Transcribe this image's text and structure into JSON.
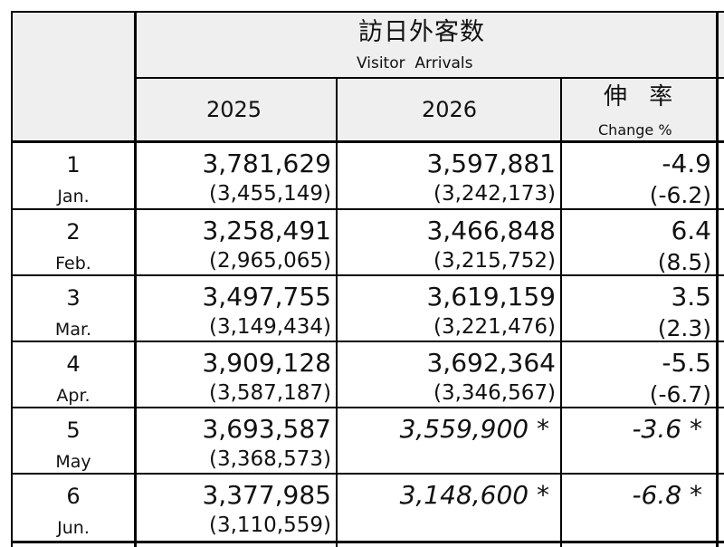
{
  "header": {
    "title_jp": "訪日外客数",
    "title_en": "Visitor  Arrivals",
    "col_2025": "2025",
    "col_2026": "2026",
    "change_jp": "伸 率",
    "change_en": "Change %"
  },
  "rows": [
    {
      "num": "1",
      "month": "Jan.",
      "v2025": "3,781,629",
      "p2025": "(3,455,149)",
      "v2026": "3,597,881",
      "p2026": "(3,242,173)",
      "chg": "-4.9",
      "pchg": "(-6.2)",
      "est": false
    },
    {
      "num": "2",
      "month": "Feb.",
      "v2025": "3,258,491",
      "p2025": "(2,965,065)",
      "v2026": "3,466,848",
      "p2026": "(3,215,752)",
      "chg": "6.4",
      "pchg": "(8.5)",
      "est": false
    },
    {
      "num": "3",
      "month": "Mar.",
      "v2025": "3,497,755",
      "p2025": "(3,149,434)",
      "v2026": "3,619,159",
      "p2026": "(3,221,476)",
      "chg": "3.5",
      "pchg": "(2.3)",
      "est": false
    },
    {
      "num": "4",
      "month": "Apr.",
      "v2025": "3,909,128",
      "p2025": "(3,587,187)",
      "v2026": "3,692,364",
      "p2026": "(3,346,567)",
      "chg": "-5.5",
      "pchg": "(-6.7)",
      "est": false
    },
    {
      "num": "5",
      "month": "May",
      "v2025": "3,693,587",
      "p2025": "(3,368,573)",
      "v2026": "3,559,900 *",
      "p2026": "",
      "chg": "-3.6 *",
      "pchg": "",
      "est": true
    },
    {
      "num": "6",
      "month": "Jun.",
      "v2025": "3,377,985",
      "p2025": "(3,110,559)",
      "v2026": "3,148,600 *",
      "p2026": "",
      "chg": "-6.8 *",
      "pchg": "",
      "est": true
    }
  ]
}
